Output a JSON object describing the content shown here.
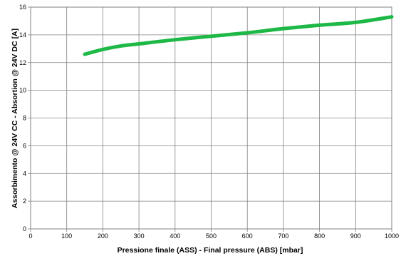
{
  "chart_data": {
    "type": "line",
    "title": "",
    "xlabel": "Pressione finale (ASS) - Final pressure (ABS) [mbar]",
    "ylabel": "Assorbimento @ 24V CC - Absortion @ 24V DC [A]",
    "xlim": [
      0,
      1000
    ],
    "ylim": [
      0,
      16
    ],
    "xticks": [
      0,
      100,
      200,
      300,
      400,
      500,
      600,
      700,
      800,
      900,
      1000
    ],
    "yticks": [
      0,
      2,
      4,
      6,
      8,
      10,
      12,
      14,
      16
    ],
    "grid": true,
    "legend": "none",
    "series": [
      {
        "color": "#1db846",
        "x": [
          150,
          200,
          250,
          300,
          400,
          500,
          600,
          700,
          800,
          900,
          1000
        ],
        "y": [
          12.6,
          12.95,
          13.2,
          13.35,
          13.65,
          13.9,
          14.15,
          14.45,
          14.7,
          14.9,
          15.3
        ]
      }
    ]
  }
}
